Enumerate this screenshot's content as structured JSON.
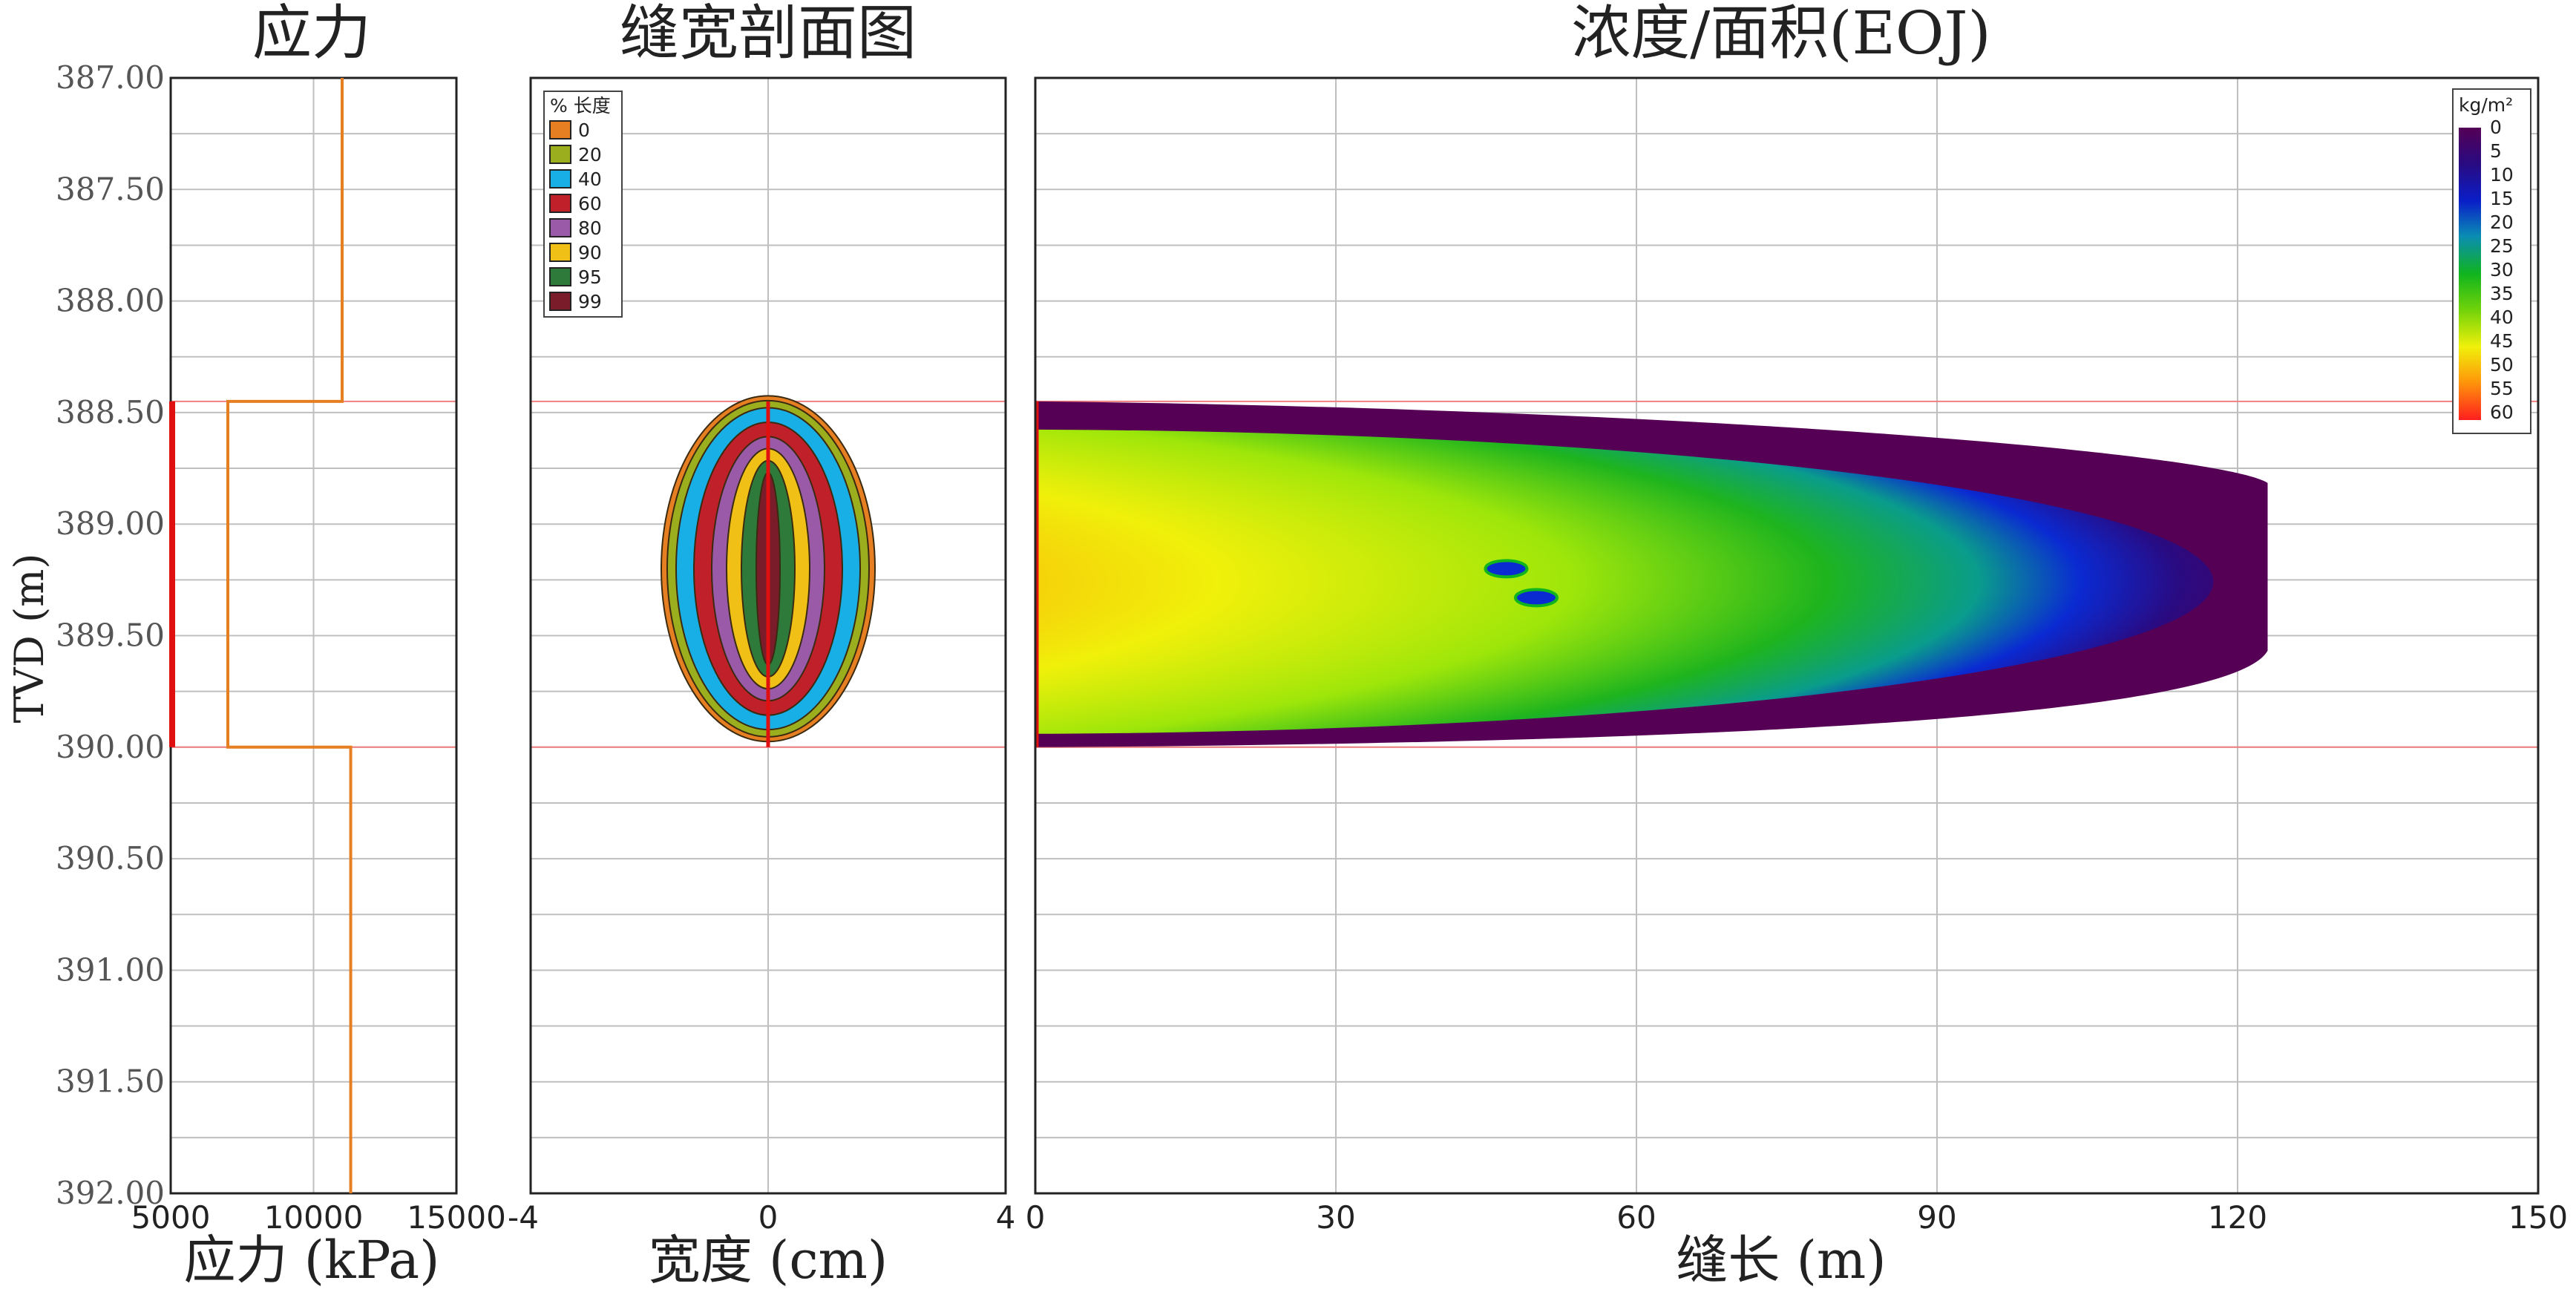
{
  "chart_data": [
    {
      "type": "line",
      "title": "应力",
      "xlabel": "应力 (kPa)",
      "ylabel": "TVD (m)",
      "xlim": [
        5000,
        15000
      ],
      "ylim": [
        392.0,
        387.0
      ],
      "xticks": [
        "5000",
        "10000",
        "15000"
      ],
      "yticks": [
        "387.00",
        "387.50",
        "388.00",
        "388.50",
        "389.00",
        "389.50",
        "390.00",
        "390.50",
        "391.00",
        "391.50",
        "392.00"
      ],
      "series": [
        {
          "color": "#e67e22",
          "points": [
            [
              11000,
              387.0
            ],
            [
              11000,
              388.45
            ],
            [
              7000,
              388.45
            ],
            [
              7000,
              390.0
            ],
            [
              11300,
              390.0
            ],
            [
              11300,
              392.0
            ]
          ]
        }
      ],
      "zone_marker": {
        "from": 388.45,
        "to": 390.0,
        "color": "#e01010"
      },
      "grid": true
    },
    {
      "type": "heatmap",
      "title": "缝宽剖面图",
      "xlabel": "宽度 (cm)",
      "xlim": [
        -4,
        4
      ],
      "ylim": [
        392.0,
        387.0
      ],
      "xticks": [
        "-4",
        "0",
        "4"
      ],
      "legend": {
        "title": "% 长度",
        "entries": [
          {
            "label": "0",
            "color": "#e67e22"
          },
          {
            "label": "20",
            "color": "#9aae1e"
          },
          {
            "label": "40",
            "color": "#18aee6"
          },
          {
            "label": "60",
            "color": "#c0202a"
          },
          {
            "label": "80",
            "color": "#9a5aa8"
          },
          {
            "label": "90",
            "color": "#f0c016"
          },
          {
            "label": "95",
            "color": "#2e7a3a"
          },
          {
            "label": "99",
            "color": "#7a1c2a"
          }
        ]
      },
      "profile": {
        "top": 388.45,
        "bottom": 390.0,
        "center": 389.2,
        "half_widths_cm": [
          1.8,
          1.7,
          1.55,
          1.25,
          0.95,
          0.7,
          0.45,
          0.2
        ]
      },
      "grid": true
    },
    {
      "type": "heatmap",
      "title": "浓度/面积(EOJ)",
      "xlabel": "缝长 (m)",
      "xlim": [
        0,
        150
      ],
      "ylim": [
        392.0,
        387.0
      ],
      "xticks": [
        "0",
        "30",
        "60",
        "90",
        "120",
        "150"
      ],
      "colorbar": {
        "unit": "kg/m²",
        "ticks": [
          "0",
          "5",
          "10",
          "15",
          "20",
          "25",
          "30",
          "35",
          "40",
          "45",
          "50",
          "55",
          "60"
        ],
        "colors": [
          "#550055",
          "#3a0a78",
          "#1a14b4",
          "#0a46d8",
          "#0a96b4",
          "#0aa078",
          "#10b41e",
          "#5ac80a",
          "#aae00a",
          "#f0f00a",
          "#ffaa0a",
          "#ff5a0a",
          "#ff1e1e"
        ]
      },
      "fracture": {
        "top": 388.45,
        "bottom": 390.0,
        "length": 123
      },
      "grid": true
    }
  ]
}
